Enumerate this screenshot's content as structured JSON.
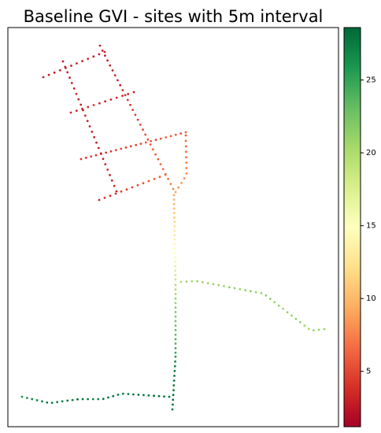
{
  "chart_data": {
    "type": "scatter",
    "title": "Baseline GVI - sites with 5m interval",
    "colormap": "RdYlGn",
    "clim": [
      1.2,
      28.6
    ],
    "cticks": [
      5,
      10,
      15,
      20,
      25
    ],
    "segments": [
      {
        "values": [
          3,
          3,
          2.5,
          3,
          3,
          2.5,
          3,
          3,
          3.5,
          3,
          3,
          3
        ]
      },
      {
        "values": [
          3.5,
          3,
          3,
          3.5,
          4,
          3.5,
          3,
          3,
          3.5,
          4,
          3.5,
          3
        ]
      },
      {
        "values": [
          4,
          4,
          4.5,
          4,
          3.5,
          4,
          4.5,
          5,
          5,
          4.5,
          4.5,
          5,
          5,
          5.5,
          5.5,
          5,
          5.5,
          6,
          6,
          6,
          5.5,
          6
        ]
      },
      {
        "values": [
          3.5,
          4,
          4,
          4,
          4.5,
          4.5,
          5,
          5,
          5.5,
          5.5,
          6,
          6,
          6.5
        ]
      },
      {
        "values": [
          2.5,
          3,
          3,
          2.5,
          3,
          3,
          3.5,
          3,
          3,
          2.5,
          3,
          3,
          3,
          3.5,
          3,
          3,
          3,
          2.5,
          3,
          3,
          3.5,
          3,
          3,
          3,
          3
        ]
      },
      {
        "values": [
          3,
          3,
          2.5,
          3,
          3,
          3,
          3.5,
          3.5,
          3,
          3.5,
          4,
          4,
          4,
          4.5,
          4.5,
          4.5,
          5,
          5,
          5,
          5.5,
          5.5,
          6,
          6,
          6,
          6.5,
          6.5,
          7,
          7,
          7.5,
          7.5
        ]
      },
      {
        "values": [
          6,
          6.5,
          6.5,
          7,
          7,
          7.5,
          7.5,
          8,
          8,
          8.5,
          8.5,
          9
        ]
      },
      {
        "values": [
          9,
          9.5,
          10,
          10,
          10.5,
          11,
          11.5,
          12,
          12.5,
          13,
          13.5,
          14,
          14.5,
          15,
          15.5,
          16,
          17,
          17.5,
          18,
          19
        ]
      },
      {
        "values": [
          20,
          20,
          20.5,
          21,
          21,
          21.5,
          22,
          22,
          22.5,
          23,
          23,
          23.5,
          24,
          24,
          24.5,
          25
        ]
      },
      {
        "values": [
          26,
          27,
          27,
          27.5,
          27.5,
          28,
          28,
          28,
          28,
          28,
          28,
          28
        ]
      },
      {
        "values": [
          26,
          26.5,
          27,
          27,
          27,
          27.5,
          27.5,
          27,
          27,
          27.5,
          27.5,
          28,
          27.5,
          27.5,
          27,
          27,
          27.5,
          27.5,
          27.5,
          28,
          27.5,
          27.5,
          28,
          28,
          27.5,
          27.5,
          28,
          28,
          28,
          28
        ]
      },
      {
        "values": [
          20,
          20.5,
          20.5,
          21,
          21,
          20.5,
          21,
          21,
          21,
          21.5,
          21,
          21,
          21.5,
          21.5,
          21,
          21,
          21.5,
          21.5,
          21,
          21,
          20.5,
          21,
          21,
          21.5,
          21,
          21,
          20.5,
          21,
          21,
          21
        ]
      }
    ]
  }
}
